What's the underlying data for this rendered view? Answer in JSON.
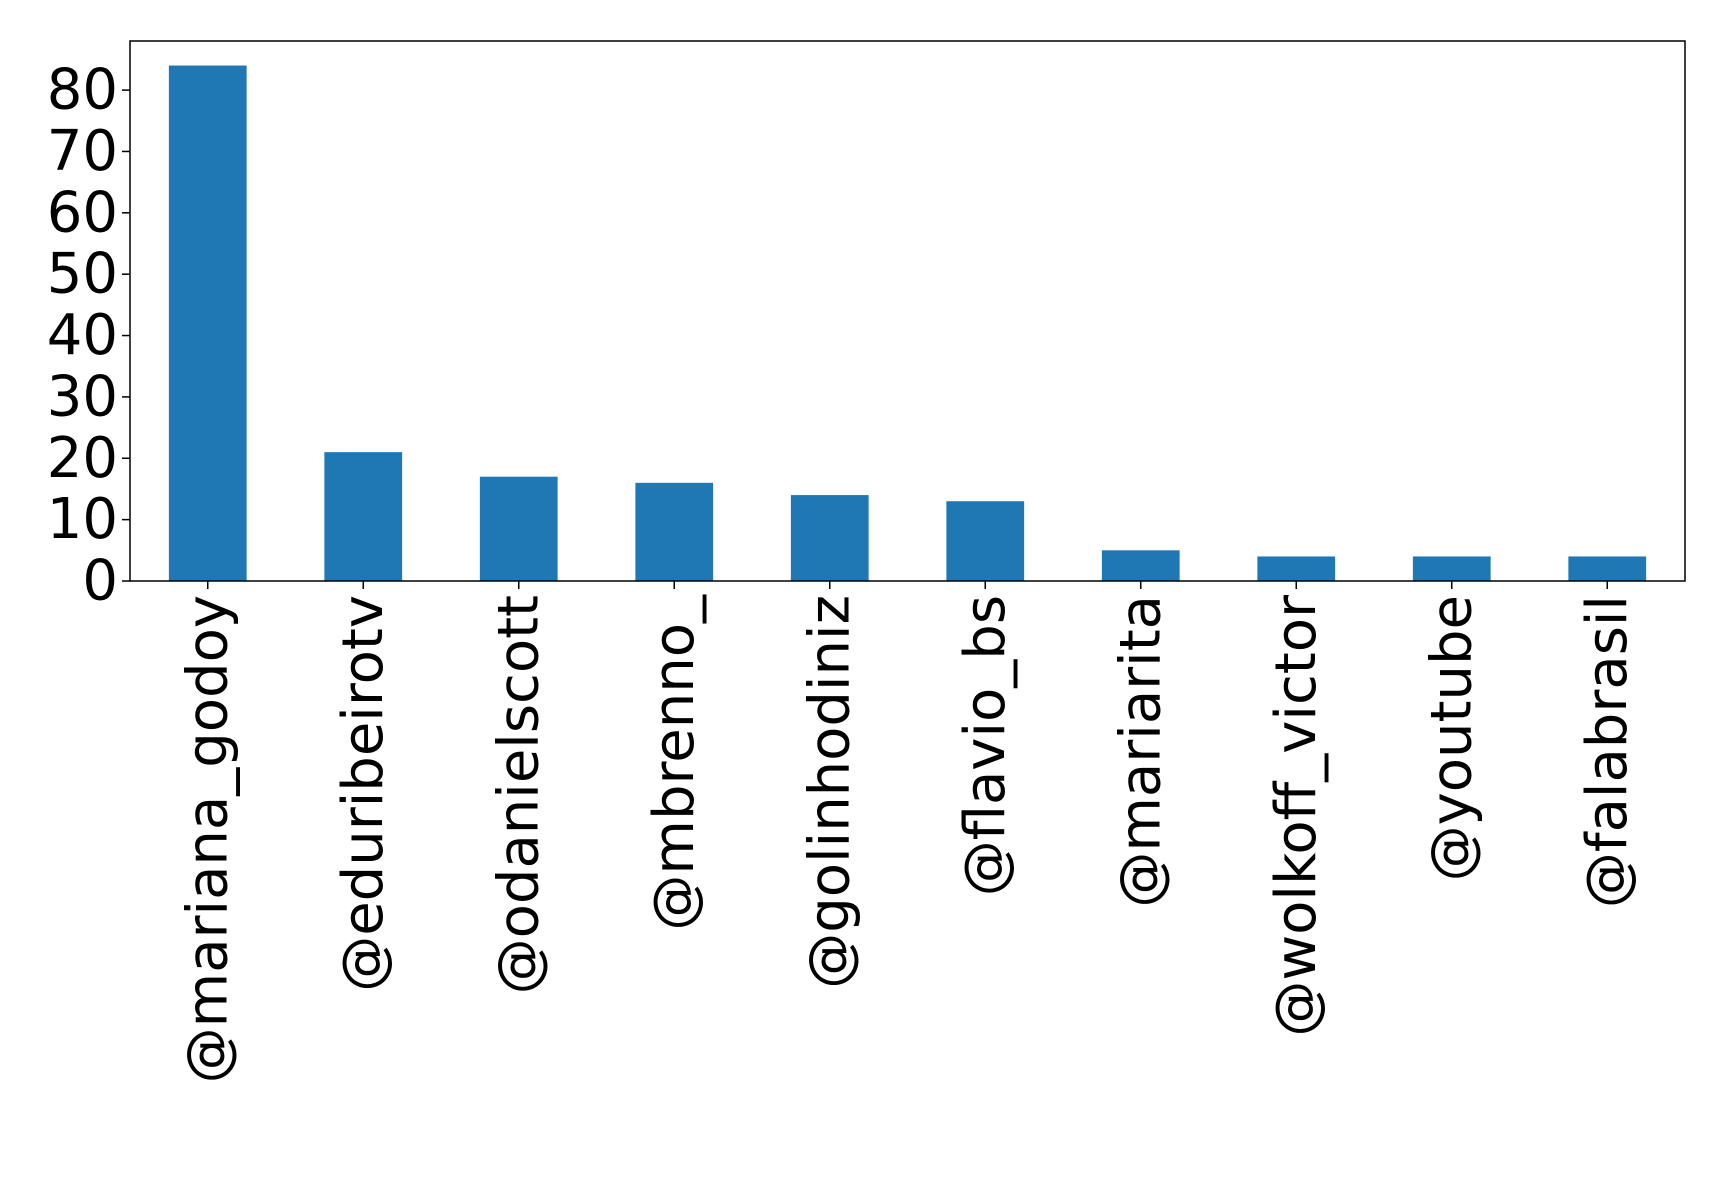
{
  "chart_data": {
    "type": "bar",
    "categories": [
      "@mariana_godoy",
      "@eduribeirotv",
      "@odanielscott",
      "@mbrenno_",
      "@golinhodiniz",
      "@flavio_bs",
      "@mariarita",
      "@wolkoff_victor",
      "@youtube",
      "@falabrasil"
    ],
    "values": [
      84,
      21,
      17,
      16,
      14,
      13,
      5,
      4,
      4,
      4
    ],
    "title": "",
    "xlabel": "",
    "ylabel": "",
    "ylim": [
      0,
      88
    ],
    "yticks": [
      0,
      10,
      20,
      30,
      40,
      50,
      60,
      70,
      80
    ],
    "grid": false,
    "legend": "none",
    "colors": {
      "bar": "#1f77b4",
      "axis": "#000000",
      "background": "#ffffff"
    }
  }
}
